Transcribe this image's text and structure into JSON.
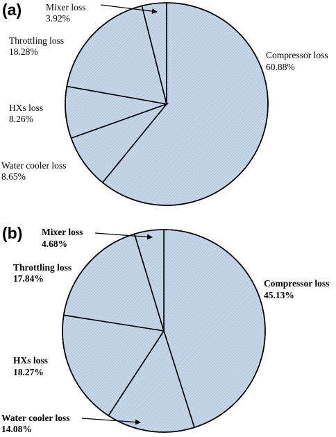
{
  "chart_data": [
    {
      "type": "pie",
      "panel_label": "(a)",
      "slices": [
        {
          "name": "Compressor loss",
          "value": 60.88,
          "label": "60.88%"
        },
        {
          "name": "Water cooler loss",
          "value": 8.65,
          "label": "8.65%"
        },
        {
          "name": "HXs loss",
          "value": 8.26,
          "label": "8.26%"
        },
        {
          "name": "Throttling loss",
          "value": 18.28,
          "label": "18.28%"
        },
        {
          "name": "Mixer loss",
          "value": 3.92,
          "label": "3.92%"
        }
      ],
      "fill_color": "#c9d9ec",
      "hatch_color": "#9bb0c8",
      "label_weight": "normal"
    },
    {
      "type": "pie",
      "panel_label": "(b)",
      "slices": [
        {
          "name": "Compressor loss",
          "value": 45.13,
          "label": "45.13%"
        },
        {
          "name": "Water cooler loss",
          "value": 14.08,
          "label": "14.08%"
        },
        {
          "name": "HXs loss",
          "value": 18.27,
          "label": "18.27%"
        },
        {
          "name": "Throttling loss",
          "value": 17.84,
          "label": "17.84%"
        },
        {
          "name": "Mixer loss",
          "value": 4.68,
          "label": "4.68%"
        }
      ],
      "fill_color": "#c9d9ec",
      "hatch_color": "#9bb0c8",
      "label_weight": "bold"
    }
  ]
}
